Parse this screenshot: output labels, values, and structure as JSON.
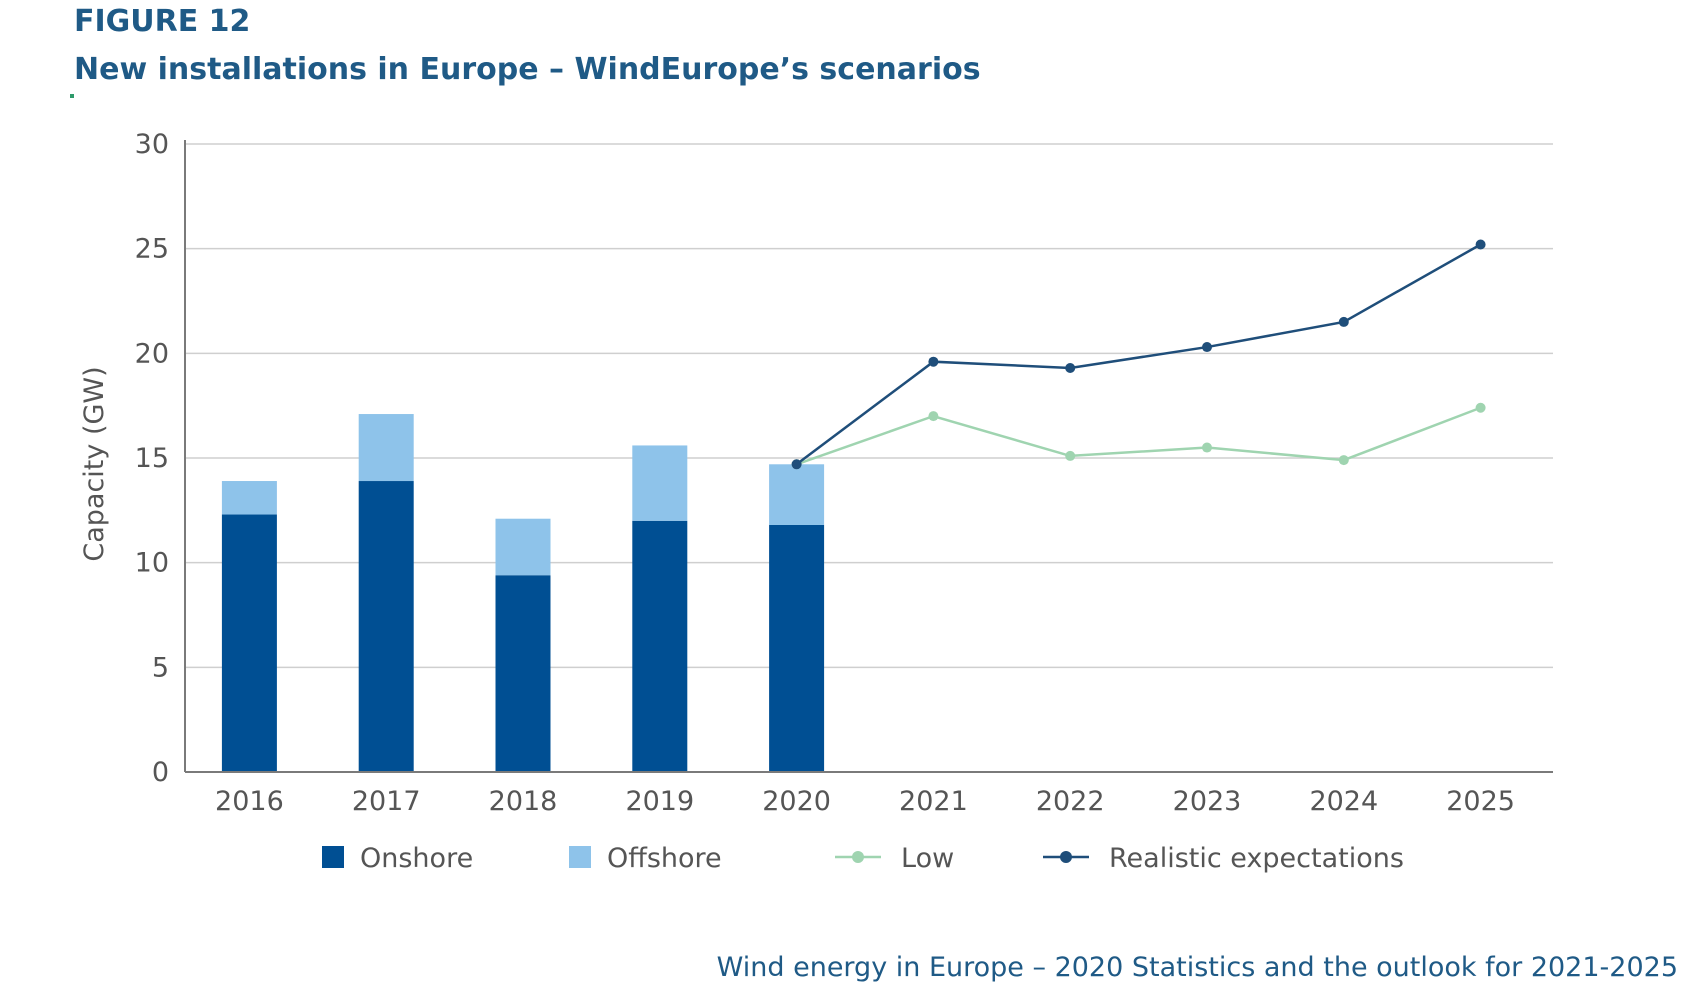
{
  "figure": {
    "label": "FIGURE 12",
    "title": "New installations in Europe – WindEurope’s scenarios",
    "source": "Wind energy in Europe – 2020 Statistics and the outlook for 2021-2025"
  },
  "chart_data": {
    "type": "bar",
    "title": "New installations in Europe – WindEurope’s scenarios",
    "xlabel": "",
    "ylabel": "Capacity (GW)",
    "ylim": [
      0,
      30
    ],
    "yticks": [
      0,
      5,
      10,
      15,
      20,
      25,
      30
    ],
    "grid": true,
    "legend_position": "bottom",
    "categories": [
      "2016",
      "2017",
      "2018",
      "2019",
      "2020",
      "2021",
      "2022",
      "2023",
      "2024",
      "2025"
    ],
    "series": [
      {
        "name": "Onshore",
        "kind": "stacked-bar",
        "color": "#004f93",
        "values": [
          12.3,
          13.9,
          9.4,
          12.0,
          11.8,
          null,
          null,
          null,
          null,
          null
        ]
      },
      {
        "name": "Offshore",
        "kind": "stacked-bar",
        "color": "#8ec3ea",
        "values": [
          1.6,
          3.2,
          2.7,
          3.6,
          2.9,
          null,
          null,
          null,
          null,
          null
        ]
      },
      {
        "name": "Low",
        "kind": "line",
        "color": "#9fd4b0",
        "values": [
          null,
          null,
          null,
          null,
          14.7,
          17.0,
          15.1,
          15.5,
          14.9,
          17.4
        ]
      },
      {
        "name": "Realistic expectations",
        "kind": "line",
        "color": "#1f4e7a",
        "values": [
          null,
          null,
          null,
          null,
          14.7,
          19.6,
          19.3,
          20.3,
          21.5,
          25.2
        ]
      }
    ]
  }
}
